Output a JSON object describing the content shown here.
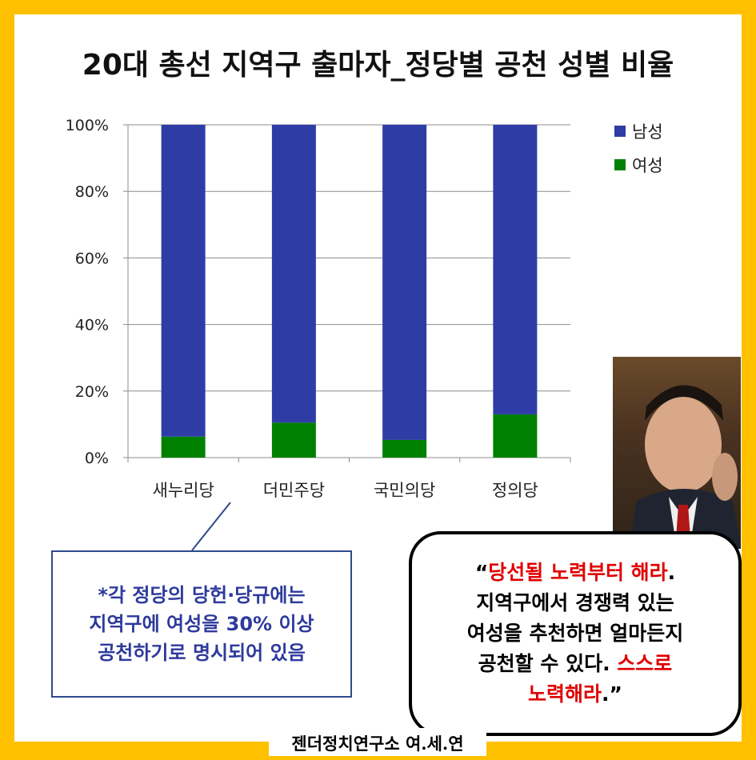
{
  "chart_data": {
    "type": "bar",
    "stacked": true,
    "title": "20대 총선 지역구 출마자_정당별 공천 성별 비율",
    "categories": [
      "새누리당",
      "더민주당",
      "국민의당",
      "정의당"
    ],
    "series": [
      {
        "name": "여성",
        "color": "#008000",
        "values": [
          6.3,
          10.5,
          5.3,
          13.0
        ]
      },
      {
        "name": "남성",
        "color": "#2E3DA6",
        "values": [
          93.7,
          89.5,
          94.7,
          87.0
        ]
      }
    ],
    "yticks": [
      "0%",
      "20%",
      "40%",
      "60%",
      "80%",
      "100%"
    ],
    "ylim": [
      0,
      100
    ],
    "legend_position": "top-right",
    "legend": [
      {
        "name": "남성",
        "color": "#2E3DA6"
      },
      {
        "name": "여성",
        "color": "#008000"
      }
    ],
    "grid": true
  },
  "callout": {
    "text": "*각 정당의 당헌·당규에는\n지역구에 여성을 30% 이상\n공천하기로 명시되어 있음"
  },
  "quote": {
    "open_mark": "“",
    "part1_red": "당선될 노력부터 해라",
    "part1_end": ".",
    "line2": "지역구에서 경쟁력 있는",
    "line3": "여성을 추천하면 얼마든지",
    "line4_black": "공천할 수 있다. ",
    "line4_red": "스스로",
    "line5_red": "노력해라",
    "close": ".”"
  },
  "footer": "젠더정치연구소 여.세.연",
  "colors": {
    "background": "#FFC000",
    "callout_text": "#2E3A9C",
    "quote_red": "#E00000"
  }
}
